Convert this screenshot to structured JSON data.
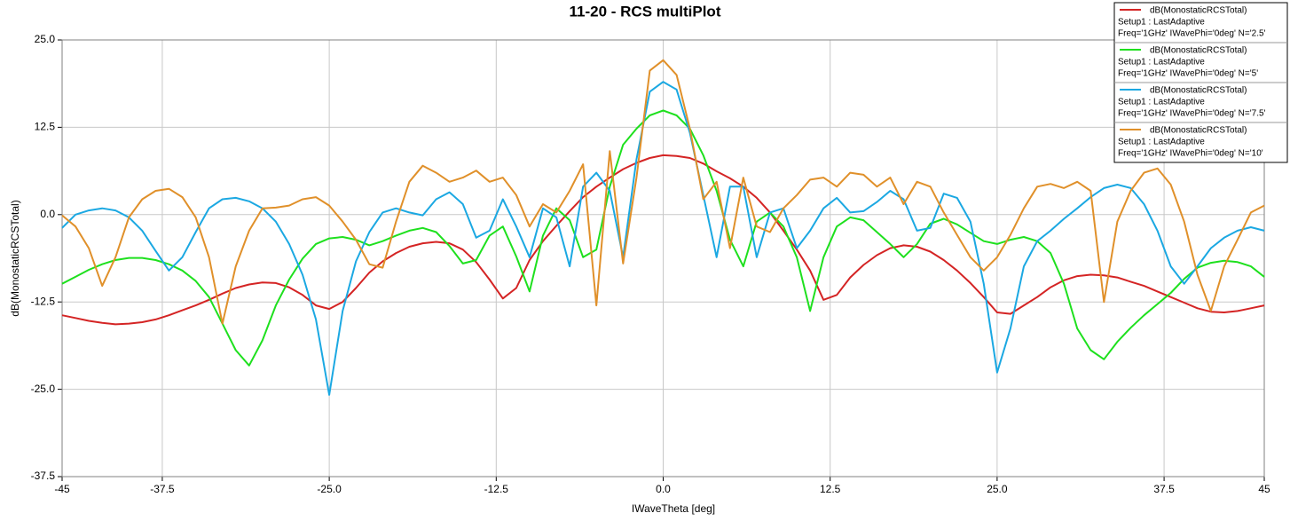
{
  "chart_data": {
    "type": "line",
    "title": "11-20 - RCS multiPlot",
    "x_label": "IWaveTheta [deg]",
    "y_label": "dB(MonostaticRCSTotal)",
    "legend": "upper right",
    "grid": true,
    "xlim": [
      -45,
      45
    ],
    "ylim": [
      -37.5,
      25
    ],
    "xticks": [
      -45,
      -37.5,
      {
        "value": -25,
        "label": "-25.0"
      },
      -12.5,
      {
        "value": 0,
        "label": "0.0"
      },
      12.5,
      {
        "value": 25,
        "label": "25.0"
      },
      37.5,
      45
    ],
    "yticks": [
      {
        "value": 25,
        "label": "25.0"
      },
      12.5,
      {
        "value": 0,
        "label": "0.0"
      },
      -12.5,
      {
        "value": -25,
        "label": "-25.0"
      },
      -37.5
    ],
    "x": [
      -45,
      -44,
      -43,
      -42,
      -41,
      -40,
      -39,
      -38,
      -37,
      -36,
      -35,
      -34,
      -33,
      -32,
      -31,
      -30,
      -29,
      -28,
      -27,
      -26,
      -25,
      -24,
      -23,
      -22,
      -21,
      -20,
      -19,
      -18,
      -17,
      -16,
      -15,
      -14,
      -13,
      -12,
      -11,
      -10,
      -9,
      -8,
      -7,
      -6,
      -5,
      -4,
      -3,
      -2,
      -1,
      0,
      1,
      2,
      3,
      4,
      5,
      6,
      7,
      8,
      9,
      10,
      11,
      12,
      13,
      14,
      15,
      16,
      17,
      18,
      19,
      20,
      21,
      22,
      23,
      24,
      25,
      26,
      27,
      28,
      29,
      30,
      31,
      32,
      33,
      34,
      35,
      36,
      37,
      38,
      39,
      40,
      41,
      42,
      43,
      44,
      45
    ],
    "series": [
      {
        "name": "dB(MonostaticRCSTotal)",
        "solution": "Setup1 : LastAdaptive",
        "variation": "Freq='1GHz' IWavePhi='0deg' N='2.5'",
        "color": "#d42424",
        "values": [
          -14.4,
          -14.8,
          -15.2,
          -15.5,
          -15.7,
          -15.6,
          -15.4,
          -15.0,
          -14.4,
          -13.7,
          -13.0,
          -12.2,
          -11.3,
          -10.5,
          -10.0,
          -9.7,
          -9.8,
          -10.4,
          -11.5,
          -13.0,
          -13.5,
          -12.5,
          -10.5,
          -8.3,
          -6.7,
          -5.5,
          -4.6,
          -4.1,
          -3.9,
          -4.1,
          -5.0,
          -6.8,
          -9.3,
          -12.0,
          -10.5,
          -6.5,
          -3.8,
          -1.6,
          0.5,
          2.5,
          4.0,
          5.3,
          6.5,
          7.4,
          8.1,
          8.5,
          8.4,
          8.1,
          7.3,
          6.2,
          5.2,
          4.0,
          2.4,
          0.3,
          -2.3,
          -5.0,
          -8.0,
          -12.2,
          -11.5,
          -9.0,
          -7.2,
          -5.8,
          -4.8,
          -4.4,
          -4.6,
          -5.3,
          -6.5,
          -8.0,
          -9.8,
          -11.8,
          -14.0,
          -14.2,
          -13.0,
          -11.8,
          -10.4,
          -9.4,
          -8.8,
          -8.6,
          -8.7,
          -9.0,
          -9.6,
          -10.2,
          -11.0,
          -11.8,
          -12.6,
          -13.4,
          -13.9,
          -14.0,
          -13.8,
          -13.4,
          -13.0
        ]
      },
      {
        "name": "dB(MonostaticRCSTotal)",
        "solution": "Setup1 : LastAdaptive",
        "variation": "Freq='1GHz' IWavePhi='0deg' N='5'",
        "color": "#1ee01e",
        "values": [
          -9.9,
          -8.9,
          -7.9,
          -7.1,
          -6.5,
          -6.2,
          -6.2,
          -6.5,
          -7.1,
          -8.0,
          -9.5,
          -11.8,
          -15.6,
          -19.4,
          -21.6,
          -18.0,
          -13.0,
          -9.3,
          -6.3,
          -4.2,
          -3.4,
          -3.2,
          -3.6,
          -4.4,
          -3.8,
          -3.0,
          -2.3,
          -1.9,
          -2.5,
          -4.5,
          -7.0,
          -6.5,
          -3.0,
          -1.7,
          -6.0,
          -11.0,
          -3.0,
          0.9,
          -0.8,
          -6.1,
          -5.0,
          4.0,
          10.0,
          12.3,
          14.2,
          14.9,
          14.2,
          12.3,
          8.5,
          3.4,
          -3.6,
          -7.4,
          -1.0,
          0.3,
          -1.7,
          -6.1,
          -13.8,
          -6.1,
          -1.7,
          -0.4,
          -0.8,
          -2.5,
          -4.2,
          -6.1,
          -4.2,
          -1.3,
          -0.6,
          -1.4,
          -2.6,
          -3.8,
          -4.2,
          -3.6,
          -3.2,
          -3.8,
          -5.5,
          -9.9,
          -16.3,
          -19.4,
          -20.7,
          -18.2,
          -16.2,
          -14.4,
          -12.8,
          -11.2,
          -9.2,
          -7.6,
          -6.9,
          -6.6,
          -6.8,
          -7.4,
          -8.9
        ]
      },
      {
        "name": "dB(MonostaticRCSTotal)",
        "solution": "Setup1 : LastAdaptive",
        "variation": "Freq='1GHz' IWavePhi='0deg' N='7.5'",
        "color": "#1ba8e2",
        "values": [
          -1.9,
          0.0,
          0.6,
          0.9,
          0.6,
          -0.4,
          -2.3,
          -5.2,
          -8.0,
          -6.1,
          -2.5,
          0.9,
          2.2,
          2.4,
          1.9,
          0.9,
          -1.0,
          -4.2,
          -8.6,
          -15.0,
          -25.8,
          -13.8,
          -6.7,
          -2.5,
          0.3,
          0.9,
          0.3,
          -0.1,
          2.2,
          3.2,
          1.5,
          -3.3,
          -2.3,
          2.2,
          -1.7,
          -6.1,
          0.9,
          -0.4,
          -7.4,
          4.0,
          6.0,
          3.4,
          -6.1,
          7.9,
          17.6,
          19.0,
          17.9,
          11.7,
          2.8,
          -6.1,
          4.0,
          4.0,
          -6.1,
          0.3,
          0.9,
          -4.8,
          -2.3,
          0.9,
          2.4,
          0.3,
          0.5,
          1.8,
          3.4,
          2.2,
          -2.3,
          -1.9,
          3.0,
          2.4,
          -1.0,
          -9.9,
          -22.6,
          -16.3,
          -7.4,
          -3.8,
          -2.3,
          -0.6,
          0.9,
          2.5,
          3.8,
          4.3,
          3.8,
          1.5,
          -2.3,
          -7.4,
          -9.9,
          -7.4,
          -4.8,
          -3.3,
          -2.3,
          -1.8,
          -2.3
        ]
      },
      {
        "name": "dB(MonostaticRCSTotal)",
        "solution": "Setup1 : LastAdaptive",
        "variation": "Freq='1GHz' IWavePhi='0deg' N='10'",
        "color": "#e0902a",
        "values": [
          -0.1,
          -1.7,
          -4.8,
          -10.2,
          -6.1,
          -0.4,
          2.2,
          3.4,
          3.7,
          2.5,
          -0.4,
          -6.1,
          -15.6,
          -7.4,
          -2.3,
          0.9,
          1.0,
          1.3,
          2.2,
          2.5,
          1.3,
          -1.0,
          -3.6,
          -7.1,
          -7.6,
          -1.0,
          4.7,
          7.0,
          6.0,
          4.7,
          5.3,
          6.3,
          4.7,
          5.3,
          2.8,
          -1.7,
          1.5,
          0.3,
          3.4,
          7.2,
          -13.0,
          9.1,
          -7.0,
          5.3,
          20.6,
          22.1,
          20.0,
          12.3,
          2.2,
          4.7,
          -4.8,
          5.3,
          -1.7,
          -2.5,
          0.9,
          2.8,
          5.0,
          5.3,
          4.0,
          6.0,
          5.7,
          4.0,
          5.3,
          1.5,
          4.7,
          4.0,
          0.3,
          -2.9,
          -6.1,
          -8.0,
          -6.1,
          -2.9,
          0.9,
          4.0,
          4.4,
          3.8,
          4.7,
          3.4,
          -12.5,
          -1.0,
          3.4,
          6.0,
          6.6,
          4.3,
          -1.0,
          -8.6,
          -13.8,
          -7.4,
          -3.6,
          0.3,
          1.3
        ]
      }
    ]
  }
}
